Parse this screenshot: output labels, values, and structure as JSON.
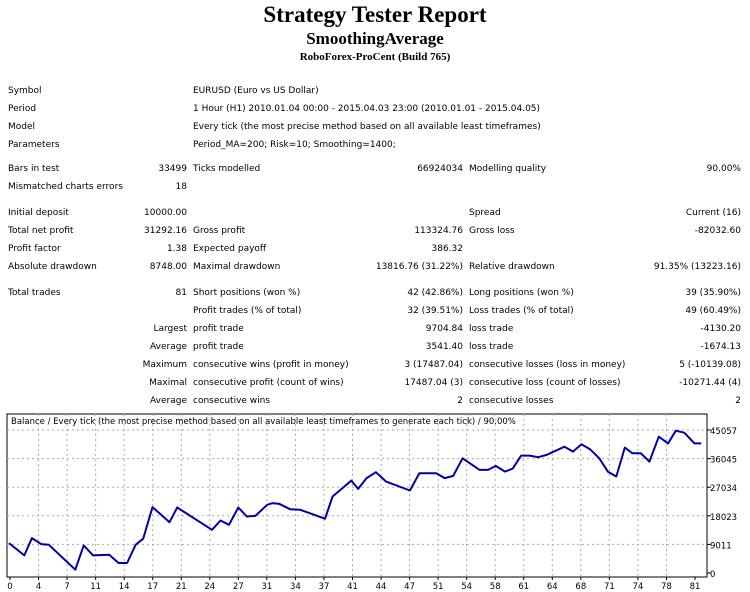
{
  "header": {
    "title": "Strategy Tester Report",
    "expert": "SmoothingAverage",
    "server": "RoboForex-ProCent (Build 765)"
  },
  "info": [
    {
      "label": "Symbol",
      "value": "EURUSD (Euro vs US Dollar)"
    },
    {
      "label": "Period",
      "value": "1 Hour (H1) 2010.01.04 00:00 - 2015.04.03 23:00 (2010.01.01 - 2015.04.05)"
    },
    {
      "label": "Model",
      "value": "Every tick (the most precise method based on all available least timeframes)"
    },
    {
      "label": "Parameters",
      "value": "Period_MA=200; Risk=10; Smoothing=1400;"
    }
  ],
  "stats": [
    [
      "Bars in test",
      "33499",
      "Ticks modelled",
      "66924034",
      "Modelling quality",
      "90.00%"
    ],
    [
      "Mismatched charts errors",
      "18",
      "",
      "",
      "",
      ""
    ],
    [
      "Initial deposit",
      "10000.00",
      "",
      "",
      "Spread",
      "Current (16)"
    ],
    [
      "Total net profit",
      "31292.16",
      "Gross profit",
      "113324.76",
      "Gross loss",
      "-82032.60"
    ],
    [
      "Profit factor",
      "1.38",
      "Expected payoff",
      "386.32",
      "",
      ""
    ],
    [
      "Absolute drawdown",
      "8748.00",
      "Maximal drawdown",
      "13816.76 (31.22%)",
      "Relative drawdown",
      "91.35% (13223.16)"
    ],
    [
      "Total trades",
      "81",
      "Short positions (won %)",
      "42 (42.86%)",
      "Long positions (won %)",
      "39 (35.90%)"
    ],
    [
      "",
      "",
      "Profit trades (% of total)",
      "32 (39.51%)",
      "Loss trades (% of total)",
      "49 (60.49%)"
    ],
    [
      "",
      "Largest",
      "profit trade",
      "9704.84",
      "loss trade",
      "-4130.20"
    ],
    [
      "",
      "Average",
      "profit trade",
      "3541.40",
      "loss trade",
      "-1674.13"
    ],
    [
      "",
      "Maximum",
      "consecutive wins (profit in money)",
      "3 (17487.04)",
      "consecutive losses (loss in money)",
      "5 (-10139.08)"
    ],
    [
      "",
      "Maximal",
      "consecutive profit (count of wins)",
      "17487.04 (3)",
      "consecutive loss (count of losses)",
      "-10271.44 (4)"
    ],
    [
      "",
      "Average",
      "consecutive wins",
      "2",
      "consecutive losses",
      "2"
    ]
  ],
  "chart_data": {
    "type": "line",
    "title": "Balance / Every tick (the most precise method based on all available least timeframes to generate each tick) / 90.00%",
    "xticks": [
      "0",
      "4",
      "7",
      "11",
      "14",
      "17",
      "21",
      "24",
      "27",
      "31",
      "34",
      "37",
      "41",
      "44",
      "47",
      "51",
      "54",
      "58",
      "61",
      "64",
      "68",
      "71",
      "74",
      "78",
      "81"
    ],
    "yticks": [
      "0",
      "9011",
      "18023",
      "27034",
      "36045",
      "45057"
    ],
    "ylim": [
      0,
      45057
    ],
    "xlim": [
      0,
      81
    ],
    "grid": true,
    "line_color": "#0000a8",
    "x": [
      0,
      1.8,
      2.7,
      3.8,
      4.7,
      7.8,
      8.8,
      9.9,
      11.8,
      12.9,
      13.9,
      14.9,
      15.8,
      16.9,
      18.9,
      19.8,
      23.9,
      24.9,
      25.9,
      27.0,
      28.0,
      29.0,
      30.4,
      31.0,
      31.8,
      33.1,
      34.3,
      37.2,
      38.1,
      40.3,
      41.1,
      42.1,
      43.2,
      44.4,
      47.2,
      48.3,
      50.3,
      51.3,
      52.3,
      53.4,
      55.4,
      56.4,
      57.3,
      58.4,
      59.3,
      60.3,
      61.3,
      62.3,
      63.3,
      65.4,
      66.4,
      67.4,
      68.4,
      69.5,
      70.5,
      71.5,
      72.5,
      73.4,
      74.4,
      75.4,
      76.5,
      77.6,
      78.5,
      79.5,
      80.7,
      81.5
    ],
    "y": [
      9430,
      5550,
      11000,
      9100,
      8900,
      1050,
      8700,
      5550,
      5760,
      3140,
      3140,
      8900,
      10800,
      20750,
      16000,
      20650,
      13600,
      16550,
      15200,
      20650,
      17800,
      18000,
      21500,
      22000,
      21800,
      20100,
      19900,
      17100,
      24100,
      29100,
      26500,
      29900,
      31750,
      28800,
      26000,
      31400,
      31400,
      29900,
      30600,
      36150,
      32500,
      32500,
      33750,
      31950,
      32900,
      37000,
      37000,
      36500,
      37200,
      39800,
      38250,
      40550,
      39000,
      36150,
      31950,
      30400,
      39500,
      37700,
      37700,
      35100,
      42950,
      40850,
      44850,
      44200,
      40850,
      40850
    ]
  }
}
